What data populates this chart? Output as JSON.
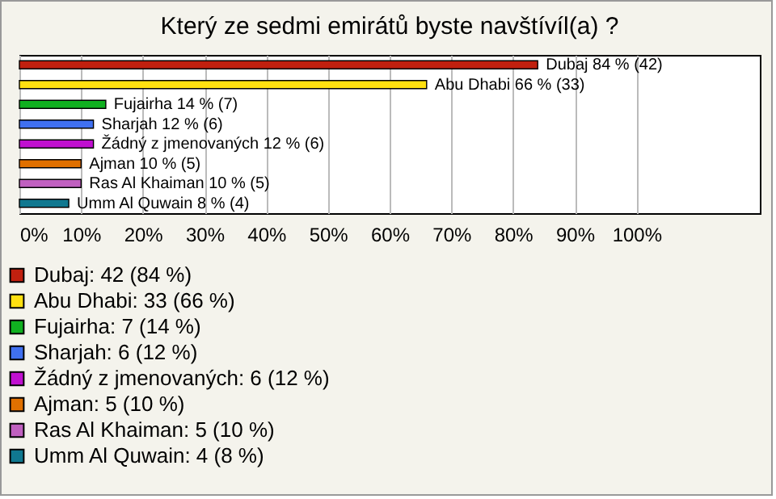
{
  "chart_data": {
    "type": "bar",
    "orientation": "horizontal",
    "title": "Který ze sedmi emirátů byste navštívíl(a) ?",
    "categories": [
      null,
      null,
      null,
      null,
      null,
      null,
      null,
      null
    ],
    "series": [
      {
        "name": "Dubaj: 42 (84 %)",
        "color": "#c0200f",
        "values": [
          84,
          null,
          null,
          null,
          null,
          null,
          null,
          null
        ],
        "value_labels": [
          "Dubaj 84 % (42)",
          null,
          null,
          null,
          null,
          null,
          null,
          null
        ]
      },
      {
        "name": "Abu Dhabi: 33 (66 %)",
        "color": "#ffe010",
        "values": [
          null,
          66,
          null,
          null,
          null,
          null,
          null,
          null
        ],
        "value_labels": [
          null,
          "Abu Dhabi 66 % (33)",
          null,
          null,
          null,
          null,
          null,
          null
        ]
      },
      {
        "name": "Fujairha: 7 (14 %)",
        "color": "#10b020",
        "values": [
          null,
          null,
          14,
          null,
          null,
          null,
          null,
          null
        ],
        "value_labels": [
          null,
          null,
          "Fujairha 14 % (7)",
          null,
          null,
          null,
          null,
          null
        ]
      },
      {
        "name": "Sharjah: 6 (12 %)",
        "color": "#4070f0",
        "values": [
          null,
          null,
          null,
          12,
          null,
          null,
          null,
          null
        ],
        "value_labels": [
          null,
          null,
          null,
          "Sharjah 12 % (6)",
          null,
          null,
          null,
          null
        ]
      },
      {
        "name": "Žádný z jmenovaných: 6 (12 %)",
        "color": "#c010d0",
        "values": [
          null,
          null,
          null,
          null,
          12,
          null,
          null,
          null
        ],
        "value_labels": [
          null,
          null,
          null,
          null,
          "Žádný z jmenovaných 12 % (6)",
          null,
          null,
          null
        ]
      },
      {
        "name": "Ajman: 5 (10 %)",
        "color": "#e07000",
        "values": [
          null,
          null,
          null,
          null,
          null,
          10,
          null,
          null
        ],
        "value_labels": [
          null,
          null,
          null,
          null,
          null,
          "Ajman 10 % (5)",
          null,
          null
        ]
      },
      {
        "name": "Ras Al Khaiman: 5 (10 %)",
        "color": "#c060c0",
        "values": [
          null,
          null,
          null,
          null,
          null,
          null,
          10,
          null
        ],
        "value_labels": [
          null,
          null,
          null,
          null,
          null,
          null,
          "Ras Al Khaiman 10 % (5)",
          null
        ]
      },
      {
        "name": "Umm Al Quwain: 4 (8 %)",
        "color": "#107890",
        "values": [
          null,
          null,
          null,
          null,
          null,
          null,
          null,
          8
        ],
        "value_labels": [
          null,
          null,
          null,
          null,
          null,
          null,
          null,
          "Umm Al Quwain 8 % (4)"
        ]
      }
    ],
    "xlim": [
      0,
      120
    ],
    "xticks": [
      {
        "value": 0,
        "label": "0%"
      },
      {
        "value": 10,
        "label": "10%"
      },
      {
        "value": 20,
        "label": "20%"
      },
      {
        "value": 30,
        "label": "30%"
      },
      {
        "value": 40,
        "label": "40%"
      },
      {
        "value": 50,
        "label": "50%"
      },
      {
        "value": 60,
        "label": "60%"
      },
      {
        "value": 70,
        "label": "70%"
      },
      {
        "value": 80,
        "label": "80%"
      },
      {
        "value": 90,
        "label": "90%"
      },
      {
        "value": 100,
        "label": "100%"
      }
    ],
    "grid": "x",
    "legend": "bottom",
    "tick_labels": "x"
  }
}
